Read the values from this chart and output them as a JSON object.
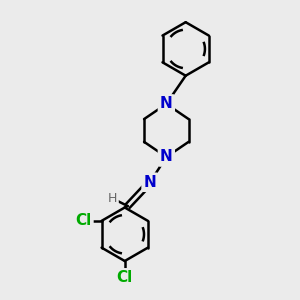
{
  "background_color": "#ebebeb",
  "bond_color": "#000000",
  "bond_width": 1.8,
  "N_color": "#0000cc",
  "Cl_color": "#00aa00",
  "H_color": "#666666",
  "font_size_N": 11,
  "font_size_Cl": 11,
  "font_size_H": 9,
  "fig_width": 3.0,
  "fig_height": 3.0,
  "dpi": 100,
  "xlim": [
    0,
    10
  ],
  "ylim": [
    0,
    10
  ]
}
